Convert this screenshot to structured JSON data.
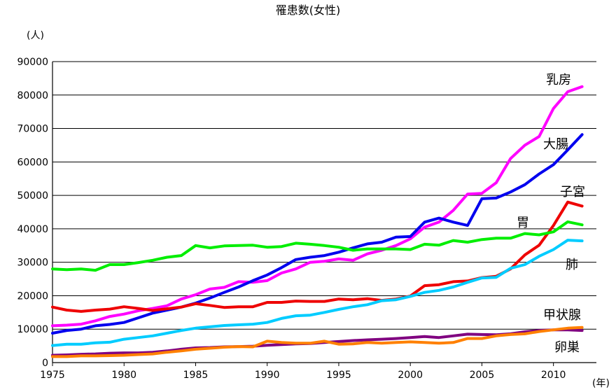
{
  "chart_data": {
    "type": "line",
    "title": "罹患数(女性)",
    "ylabel": "(人)",
    "xlabel": "(年)",
    "xlim": [
      1975,
      2013
    ],
    "ylim": [
      0,
      90000
    ],
    "y_ticks": [
      0,
      10000,
      20000,
      30000,
      40000,
      50000,
      60000,
      70000,
      80000,
      90000
    ],
    "x_ticks": [
      1975,
      1980,
      1985,
      1990,
      1995,
      2000,
      2005,
      2010
    ],
    "grid": "horizontal",
    "legend": "none",
    "x": [
      1975,
      1976,
      1977,
      1978,
      1979,
      1980,
      1981,
      1982,
      1983,
      1984,
      1985,
      1986,
      1987,
      1988,
      1989,
      1990,
      1991,
      1992,
      1993,
      1994,
      1995,
      1996,
      1997,
      1998,
      1999,
      2000,
      2001,
      2002,
      2003,
      2004,
      2005,
      2006,
      2007,
      2008,
      2009,
      2010,
      2011,
      2012
    ],
    "series": [
      {
        "name": "乳房",
        "color": "#ff00ff",
        "values": [
          11000,
          11200,
          11500,
          12500,
          13800,
          14500,
          15500,
          16200,
          17000,
          19000,
          20300,
          22000,
          22500,
          24200,
          24000,
          24500,
          26800,
          28000,
          30000,
          30300,
          31000,
          30600,
          32500,
          33600,
          35000,
          37000,
          40500,
          42000,
          45500,
          50400,
          50600,
          53800,
          61000,
          65000,
          67600,
          76000,
          81000,
          82500
        ]
      },
      {
        "name": "大腸",
        "color": "#0000ee",
        "values": [
          8800,
          9600,
          10000,
          11000,
          11400,
          12000,
          13400,
          14800,
          15700,
          16600,
          17800,
          19300,
          21000,
          22600,
          24500,
          26200,
          28400,
          30800,
          31500,
          32000,
          33000,
          34300,
          35500,
          36000,
          37500,
          37700,
          42000,
          43200,
          42000,
          41000,
          49000,
          49200,
          51000,
          53200,
          56400,
          59200,
          63600,
          68200
        ]
      },
      {
        "name": "子宮",
        "color": "#ee0000",
        "values": [
          16600,
          15700,
          15300,
          15700,
          16000,
          16700,
          16200,
          15600,
          16100,
          16600,
          17600,
          17100,
          16500,
          16700,
          16700,
          18000,
          18000,
          18400,
          18300,
          18300,
          19000,
          18800,
          19100,
          18600,
          19000,
          19900,
          23000,
          23300,
          24200,
          24400,
          25400,
          25800,
          28000,
          32200,
          35100,
          41000,
          48000,
          46800
        ]
      },
      {
        "name": "胃",
        "color": "#00ee00",
        "values": [
          28000,
          27800,
          28000,
          27600,
          29300,
          29300,
          29900,
          30600,
          31500,
          32000,
          35000,
          34300,
          34900,
          35000,
          35100,
          34500,
          34700,
          35700,
          35400,
          35000,
          34500,
          33600,
          34000,
          34000,
          34000,
          33800,
          35400,
          35100,
          36500,
          36000,
          36800,
          37200,
          37200,
          38600,
          38200,
          39100,
          42100,
          41200
        ]
      },
      {
        "name": "肺",
        "color": "#00ccff",
        "values": [
          5100,
          5500,
          5500,
          5900,
          6100,
          7000,
          7500,
          8000,
          8800,
          9600,
          10300,
          10700,
          11100,
          11300,
          11500,
          12000,
          13200,
          14000,
          14200,
          15000,
          15900,
          16700,
          17300,
          18500,
          18800,
          19800,
          21000,
          21600,
          22600,
          24000,
          25300,
          25500,
          28200,
          29300,
          31800,
          33800,
          36600,
          36400
        ]
      },
      {
        "name": "甲状腺",
        "color": "#800080",
        "values": [
          2200,
          2300,
          2500,
          2600,
          2800,
          2900,
          2900,
          3100,
          3500,
          4000,
          4400,
          4500,
          4700,
          4800,
          4900,
          5200,
          5400,
          5600,
          5700,
          6000,
          6300,
          6600,
          6800,
          7000,
          7200,
          7500,
          7800,
          7500,
          8000,
          8500,
          8400,
          8300,
          8600,
          9200,
          9600,
          9800,
          9800,
          9600
        ]
      },
      {
        "name": "卵巣",
        "color": "#ff8000",
        "values": [
          1800,
          1800,
          2000,
          2000,
          2100,
          2200,
          2400,
          2600,
          3100,
          3500,
          4000,
          4300,
          4600,
          4800,
          4700,
          6400,
          6000,
          5800,
          5800,
          6400,
          5500,
          5600,
          6000,
          5800,
          6000,
          6200,
          6000,
          5800,
          6000,
          7200,
          7200,
          8000,
          8400,
          8600,
          9300,
          9800,
          10300,
          10500
        ]
      }
    ]
  }
}
